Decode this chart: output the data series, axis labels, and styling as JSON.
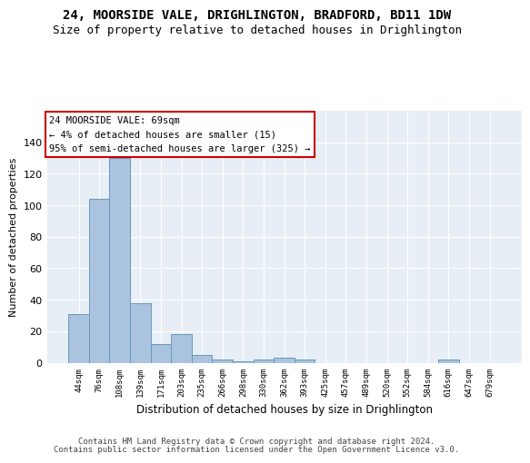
{
  "title": "24, MOORSIDE VALE, DRIGHLINGTON, BRADFORD, BD11 1DW",
  "subtitle": "Size of property relative to detached houses in Drighlington",
  "xlabel": "Distribution of detached houses by size in Drighlington",
  "ylabel": "Number of detached properties",
  "categories": [
    "44sqm",
    "76sqm",
    "108sqm",
    "139sqm",
    "171sqm",
    "203sqm",
    "235sqm",
    "266sqm",
    "298sqm",
    "330sqm",
    "362sqm",
    "393sqm",
    "425sqm",
    "457sqm",
    "489sqm",
    "520sqm",
    "552sqm",
    "584sqm",
    "616sqm",
    "647sqm",
    "679sqm"
  ],
  "values": [
    31,
    104,
    130,
    38,
    12,
    18,
    5,
    2,
    1,
    2,
    3,
    2,
    0,
    0,
    0,
    0,
    0,
    0,
    2,
    0,
    0
  ],
  "bar_color": "#aac4e0",
  "bar_edge_color": "#6699bb",
  "background_color": "#e8eef5",
  "grid_color": "#ffffff",
  "annotation_line1": "24 MOORSIDE VALE: 69sqm",
  "annotation_line2": "← 4% of detached houses are smaller (15)",
  "annotation_line3": "95% of semi-detached houses are larger (325) →",
  "annotation_box_color": "#ffffff",
  "annotation_box_edge_color": "#cc0000",
  "ylim": [
    0,
    160
  ],
  "yticks": [
    0,
    20,
    40,
    60,
    80,
    100,
    120,
    140
  ],
  "footer_line1": "Contains HM Land Registry data © Crown copyright and database right 2024.",
  "footer_line2": "Contains public sector information licensed under the Open Government Licence v3.0.",
  "title_fontsize": 10,
  "subtitle_fontsize": 9,
  "annotation_fontsize": 7.5,
  "footer_fontsize": 6.5,
  "ylabel_fontsize": 8,
  "xlabel_fontsize": 8.5,
  "ytick_fontsize": 8,
  "xtick_fontsize": 6.5
}
